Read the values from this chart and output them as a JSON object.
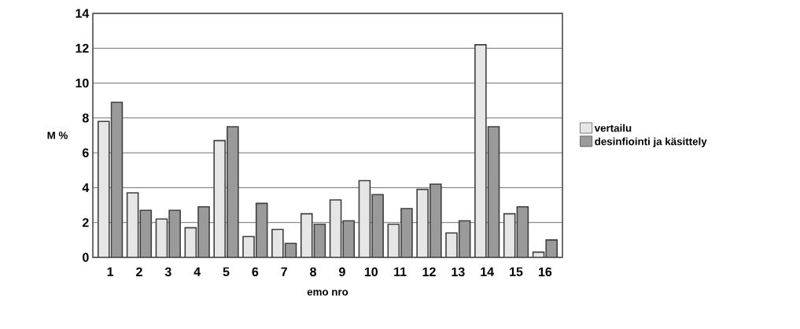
{
  "chart_data": {
    "type": "bar",
    "xlabel": "emo nro",
    "ylabel": "M %",
    "categories": [
      "1",
      "2",
      "3",
      "4",
      "5",
      "6",
      "7",
      "8",
      "9",
      "10",
      "11",
      "12",
      "13",
      "14",
      "15",
      "16"
    ],
    "series": [
      {
        "name": "vertailu",
        "color": "#e6e6e6",
        "values": [
          7.8,
          3.7,
          2.2,
          1.7,
          6.7,
          1.2,
          1.6,
          2.5,
          3.3,
          4.4,
          1.9,
          3.9,
          1.4,
          12.2,
          2.5,
          0.3
        ]
      },
      {
        "name": "desinfiointi ja käsittely",
        "color": "#9a9a9a",
        "values": [
          8.9,
          2.7,
          2.7,
          2.9,
          7.5,
          3.1,
          0.8,
          1.9,
          2.1,
          3.6,
          2.8,
          4.2,
          2.1,
          7.5,
          2.9,
          1.0
        ]
      }
    ],
    "ylim": [
      0,
      14
    ],
    "yticks": [
      0,
      2,
      4,
      6,
      8,
      10,
      12,
      14
    ],
    "grid": "y",
    "legend": "right"
  }
}
